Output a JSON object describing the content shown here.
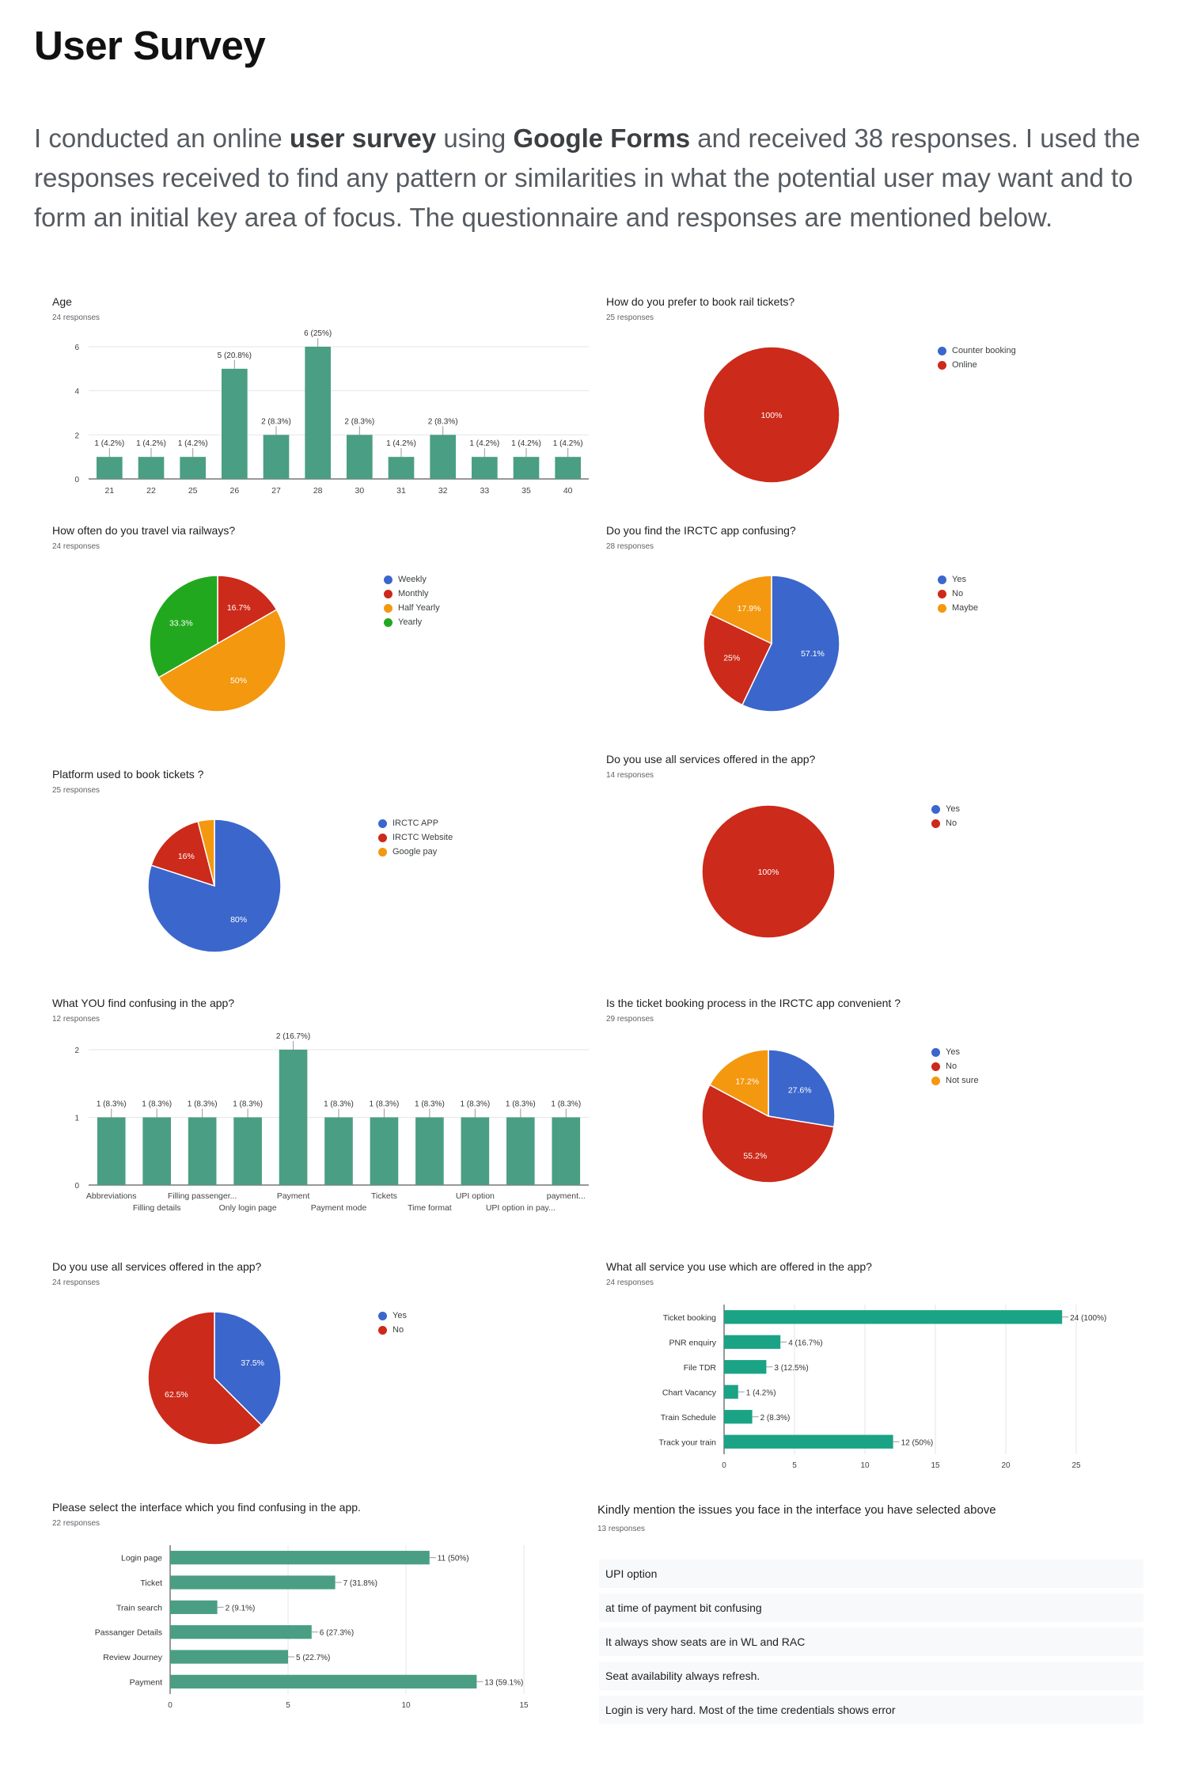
{
  "page": {
    "title": "User Survey",
    "intro": [
      {
        "t": "I conducted an online "
      },
      {
        "t": "user survey",
        "b": true
      },
      {
        "t": " using "
      },
      {
        "t": "Google Forms",
        "b": true
      },
      {
        "t": " and received 38 responses. I used the responses received to find any pattern or similarities in what the potential user may want and to form an initial key area of focus. The questionnaire and responses are mentioned below."
      }
    ]
  },
  "colors": {
    "bar": "#4a9e83",
    "hbar": "#1aa385",
    "blue": "#3b66cc",
    "red": "#cc2a1a",
    "orange": "#f4980f",
    "green": "#22a81e",
    "grid": "#e6e6e6",
    "axis": "#333333"
  },
  "chart_data": [
    {
      "id": "age",
      "type": "bar",
      "title": "Age",
      "responses": "24 responses",
      "categories": [
        "21",
        "22",
        "25",
        "26",
        "27",
        "28",
        "30",
        "31",
        "32",
        "33",
        "35",
        "40"
      ],
      "values": [
        1,
        1,
        1,
        5,
        2,
        6,
        2,
        1,
        2,
        1,
        1,
        1
      ],
      "labels": [
        "1 (4.2%)",
        "1 (4.2%)",
        "1 (4.2%)",
        "5 (20.8%)",
        "2 (8.3%)",
        "6 (25%)",
        "2 (8.3%)",
        "1 (4.2%)",
        "2 (8.3%)",
        "1 (4.2%)",
        "1 (4.2%)",
        "1 (4.2%)"
      ],
      "yticks": [
        0,
        2,
        4,
        6
      ],
      "ylim": [
        0,
        6
      ]
    },
    {
      "id": "book_pref",
      "type": "pie",
      "title": "How do you prefer to book rail tickets?",
      "responses": "25 responses",
      "slices": [
        {
          "name": "Counter booking",
          "value": 0,
          "color": "#3b66cc",
          "label": ""
        },
        {
          "name": "Online",
          "value": 100,
          "color": "#cc2a1a",
          "label": "100%"
        }
      ]
    },
    {
      "id": "travel_freq",
      "type": "pie",
      "title": "How often do you travel via railways?",
      "responses": "24 responses",
      "slices": [
        {
          "name": "Weekly",
          "value": 0,
          "color": "#3b66cc",
          "label": ""
        },
        {
          "name": "Monthly",
          "value": 16.7,
          "color": "#cc2a1a",
          "label": "16.7%"
        },
        {
          "name": "Half Yearly",
          "value": 50,
          "color": "#f4980f",
          "label": "50%"
        },
        {
          "name": "Yearly",
          "value": 33.3,
          "color": "#22a81e",
          "label": "33.3%"
        }
      ]
    },
    {
      "id": "irctc_confusing",
      "type": "pie",
      "title": "Do you find the IRCTC app confusing?",
      "responses": "28 responses",
      "slices": [
        {
          "name": "Yes",
          "value": 57.1,
          "color": "#3b66cc",
          "label": "57.1%"
        },
        {
          "name": "No",
          "value": 25,
          "color": "#cc2a1a",
          "label": "25%"
        },
        {
          "name": "Maybe",
          "value": 17.9,
          "color": "#f4980f",
          "label": "17.9%"
        }
      ]
    },
    {
      "id": "platform",
      "type": "pie",
      "title": "Platform used to book tickets ?",
      "responses": "25 responses",
      "slices": [
        {
          "name": "IRCTC APP",
          "value": 80,
          "color": "#3b66cc",
          "label": "80%"
        },
        {
          "name": "IRCTC Website",
          "value": 16,
          "color": "#cc2a1a",
          "label": "16%"
        },
        {
          "name": "Google pay",
          "value": 4,
          "color": "#f4980f",
          "label": ""
        }
      ]
    },
    {
      "id": "all_services_1",
      "type": "pie",
      "title": "Do you use all services offered in the app?",
      "responses": "14 responses",
      "slices": [
        {
          "name": "Yes",
          "value": 0,
          "color": "#3b66cc",
          "label": ""
        },
        {
          "name": "No",
          "value": 100,
          "color": "#cc2a1a",
          "label": "100%"
        }
      ]
    },
    {
      "id": "you_confusing",
      "type": "bar",
      "title": "What YOU find confusing in the app?",
      "responses": "12 responses",
      "categories": [
        "Abbreviations",
        "Filling details",
        "Filling passenger...",
        "Only login page",
        "Payment",
        "Payment mode",
        "Tickets",
        "Time format",
        "UPI option",
        "UPI option in pay...",
        "payment..."
      ],
      "values": [
        1,
        1,
        1,
        1,
        2,
        1,
        1,
        1,
        1,
        1,
        1
      ],
      "labels": [
        "1 (8.3%)",
        "1 (8.3%)",
        "1 (8.3%)",
        "1 (8.3%)",
        "2 (16.7%)",
        "1 (8.3%)",
        "1 (8.3%)",
        "1 (8.3%)",
        "1 (8.3%)",
        "1 (8.3%)",
        "1 (8.3%)"
      ],
      "yticks": [
        0,
        1,
        2
      ],
      "ylim": [
        0,
        2
      ]
    },
    {
      "id": "convenient",
      "type": "pie",
      "title": "Is the ticket booking process in the IRCTC app convenient ?",
      "responses": "29 responses",
      "slices": [
        {
          "name": "Yes",
          "value": 27.6,
          "color": "#3b66cc",
          "label": "27.6%"
        },
        {
          "name": "No",
          "value": 55.2,
          "color": "#cc2a1a",
          "label": "55.2%"
        },
        {
          "name": "Not sure",
          "value": 17.2,
          "color": "#f4980f",
          "label": "17.2%"
        }
      ]
    },
    {
      "id": "all_services_2",
      "type": "pie",
      "title": "Do you use all services offered in the app?",
      "responses": "24 responses",
      "slices": [
        {
          "name": "Yes",
          "value": 37.5,
          "color": "#3b66cc",
          "label": "37.5%"
        },
        {
          "name": "No",
          "value": 62.5,
          "color": "#cc2a1a",
          "label": "62.5%"
        }
      ]
    },
    {
      "id": "services_used",
      "type": "hbar",
      "title": "What all service you use which are offered in the app?",
      "responses": "24 responses",
      "categories": [
        "Ticket booking",
        "PNR enquiry",
        "File TDR",
        "Chart Vacancy",
        "Train Schedule",
        "Track your train"
      ],
      "values": [
        24,
        4,
        3,
        1,
        2,
        12
      ],
      "labels": [
        "24 (100%)",
        "4 (16.7%)",
        "3 (12.5%)",
        "1 (4.2%)",
        "2 (8.3%)",
        "12 (50%)"
      ],
      "xticks": [
        0,
        5,
        10,
        15,
        20,
        25
      ],
      "xlim": [
        0,
        25
      ]
    },
    {
      "id": "interface_confusing",
      "type": "hbar",
      "title": "Please select the interface which you find confusing in the app.",
      "responses": "22 responses",
      "categories": [
        "Login page",
        "Ticket",
        "Train search",
        "Passanger Details",
        "Review Journey",
        "Payment"
      ],
      "values": [
        11,
        7,
        2,
        6,
        5,
        13
      ],
      "labels": [
        "11 (50%)",
        "7 (31.8%)",
        "2 (9.1%)",
        "6 (27.3%)",
        "5 (22.7%)",
        "13 (59.1%)"
      ],
      "xticks": [
        0,
        5,
        10,
        15
      ],
      "xlim": [
        0,
        15
      ]
    }
  ],
  "issues": {
    "title": "Kindly mention the issues you face in the interface you have selected above",
    "responses": "13 responses",
    "items": [
      "UPI option",
      "at time of payment bit confusing",
      "It always show seats are in WL and RAC",
      "Seat availability always refresh.",
      "Login is very hard. Most of the time credentials shows error"
    ]
  }
}
